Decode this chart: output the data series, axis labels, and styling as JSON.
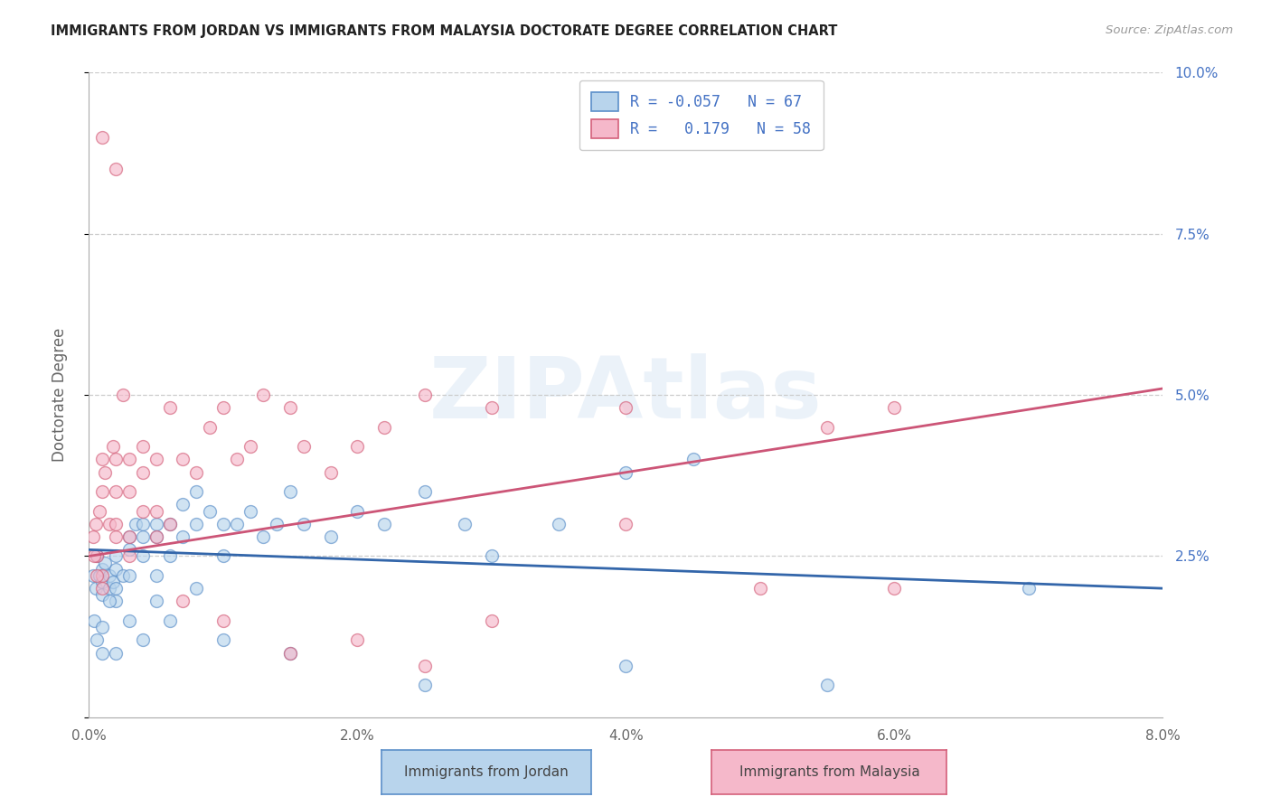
{
  "title": "IMMIGRANTS FROM JORDAN VS IMMIGRANTS FROM MALAYSIA DOCTORATE DEGREE CORRELATION CHART",
  "source": "Source: ZipAtlas.com",
  "xlabel_jordan": "Immigrants from Jordan",
  "xlabel_malaysia": "Immigrants from Malaysia",
  "ylabel": "Doctorate Degree",
  "legend_R_jordan": "-0.057",
  "legend_N_jordan": "67",
  "legend_R_malaysia": "0.179",
  "legend_N_malaysia": "58",
  "jordan_color": "#b8d4ec",
  "jordan_edge_color": "#5b8fc9",
  "jordan_line_color": "#3366aa",
  "malaysia_color": "#f5b8ca",
  "malaysia_edge_color": "#d4607a",
  "malaysia_line_color": "#cc5577",
  "xlim": [
    0.0,
    0.08
  ],
  "ylim": [
    0.0,
    0.1
  ],
  "xtick_vals": [
    0.0,
    0.02,
    0.04,
    0.06,
    0.08
  ],
  "xtick_labels": [
    "0.0%",
    "2.0%",
    "4.0%",
    "6.0%",
    "8.0%"
  ],
  "ytick_right_vals": [
    0.025,
    0.05,
    0.075,
    0.1
  ],
  "ytick_right_labels": [
    "2.5%",
    "5.0%",
    "7.5%",
    "10.0%"
  ],
  "background_color": "#ffffff",
  "grid_color": "#cccccc",
  "jordan_trend_x0": 0.0,
  "jordan_trend_y0": 0.026,
  "jordan_trend_x1": 0.08,
  "jordan_trend_y1": 0.02,
  "malaysia_trend_x0": 0.0,
  "malaysia_trend_y0": 0.025,
  "malaysia_trend_x1": 0.08,
  "malaysia_trend_y1": 0.051,
  "jordan_x": [
    0.0003,
    0.0005,
    0.0006,
    0.0008,
    0.001,
    0.001,
    0.001,
    0.0012,
    0.0015,
    0.0015,
    0.0018,
    0.002,
    0.002,
    0.002,
    0.002,
    0.0025,
    0.003,
    0.003,
    0.003,
    0.0035,
    0.004,
    0.004,
    0.004,
    0.005,
    0.005,
    0.005,
    0.006,
    0.006,
    0.007,
    0.007,
    0.008,
    0.008,
    0.009,
    0.01,
    0.01,
    0.011,
    0.012,
    0.013,
    0.014,
    0.015,
    0.016,
    0.018,
    0.02,
    0.022,
    0.025,
    0.028,
    0.03,
    0.035,
    0.04,
    0.045,
    0.0004,
    0.0006,
    0.001,
    0.001,
    0.0015,
    0.002,
    0.003,
    0.004,
    0.005,
    0.006,
    0.008,
    0.01,
    0.015,
    0.025,
    0.04,
    0.055,
    0.07
  ],
  "jordan_y": [
    0.022,
    0.02,
    0.025,
    0.022,
    0.021,
    0.019,
    0.023,
    0.024,
    0.022,
    0.02,
    0.021,
    0.025,
    0.023,
    0.02,
    0.018,
    0.022,
    0.028,
    0.026,
    0.022,
    0.03,
    0.03,
    0.028,
    0.025,
    0.03,
    0.028,
    0.022,
    0.03,
    0.025,
    0.033,
    0.028,
    0.03,
    0.035,
    0.032,
    0.03,
    0.025,
    0.03,
    0.032,
    0.028,
    0.03,
    0.035,
    0.03,
    0.028,
    0.032,
    0.03,
    0.035,
    0.03,
    0.025,
    0.03,
    0.038,
    0.04,
    0.015,
    0.012,
    0.014,
    0.01,
    0.018,
    0.01,
    0.015,
    0.012,
    0.018,
    0.015,
    0.02,
    0.012,
    0.01,
    0.005,
    0.008,
    0.005,
    0.02
  ],
  "malaysia_x": [
    0.0003,
    0.0005,
    0.0006,
    0.0008,
    0.001,
    0.001,
    0.001,
    0.0012,
    0.0015,
    0.0018,
    0.002,
    0.002,
    0.002,
    0.0025,
    0.003,
    0.003,
    0.003,
    0.004,
    0.004,
    0.005,
    0.005,
    0.006,
    0.006,
    0.007,
    0.008,
    0.009,
    0.01,
    0.011,
    0.012,
    0.013,
    0.015,
    0.016,
    0.018,
    0.02,
    0.022,
    0.025,
    0.03,
    0.04,
    0.055,
    0.06,
    0.0004,
    0.0006,
    0.001,
    0.002,
    0.003,
    0.004,
    0.005,
    0.007,
    0.01,
    0.015,
    0.02,
    0.025,
    0.03,
    0.04,
    0.05,
    0.06,
    0.001,
    0.002
  ],
  "malaysia_y": [
    0.028,
    0.03,
    0.025,
    0.032,
    0.035,
    0.022,
    0.04,
    0.038,
    0.03,
    0.042,
    0.035,
    0.028,
    0.04,
    0.05,
    0.035,
    0.04,
    0.028,
    0.042,
    0.038,
    0.032,
    0.04,
    0.03,
    0.048,
    0.04,
    0.038,
    0.045,
    0.048,
    0.04,
    0.042,
    0.05,
    0.048,
    0.042,
    0.038,
    0.042,
    0.045,
    0.05,
    0.048,
    0.048,
    0.045,
    0.048,
    0.025,
    0.022,
    0.02,
    0.03,
    0.025,
    0.032,
    0.028,
    0.018,
    0.015,
    0.01,
    0.012,
    0.008,
    0.015,
    0.03,
    0.02,
    0.02,
    0.09,
    0.085
  ]
}
